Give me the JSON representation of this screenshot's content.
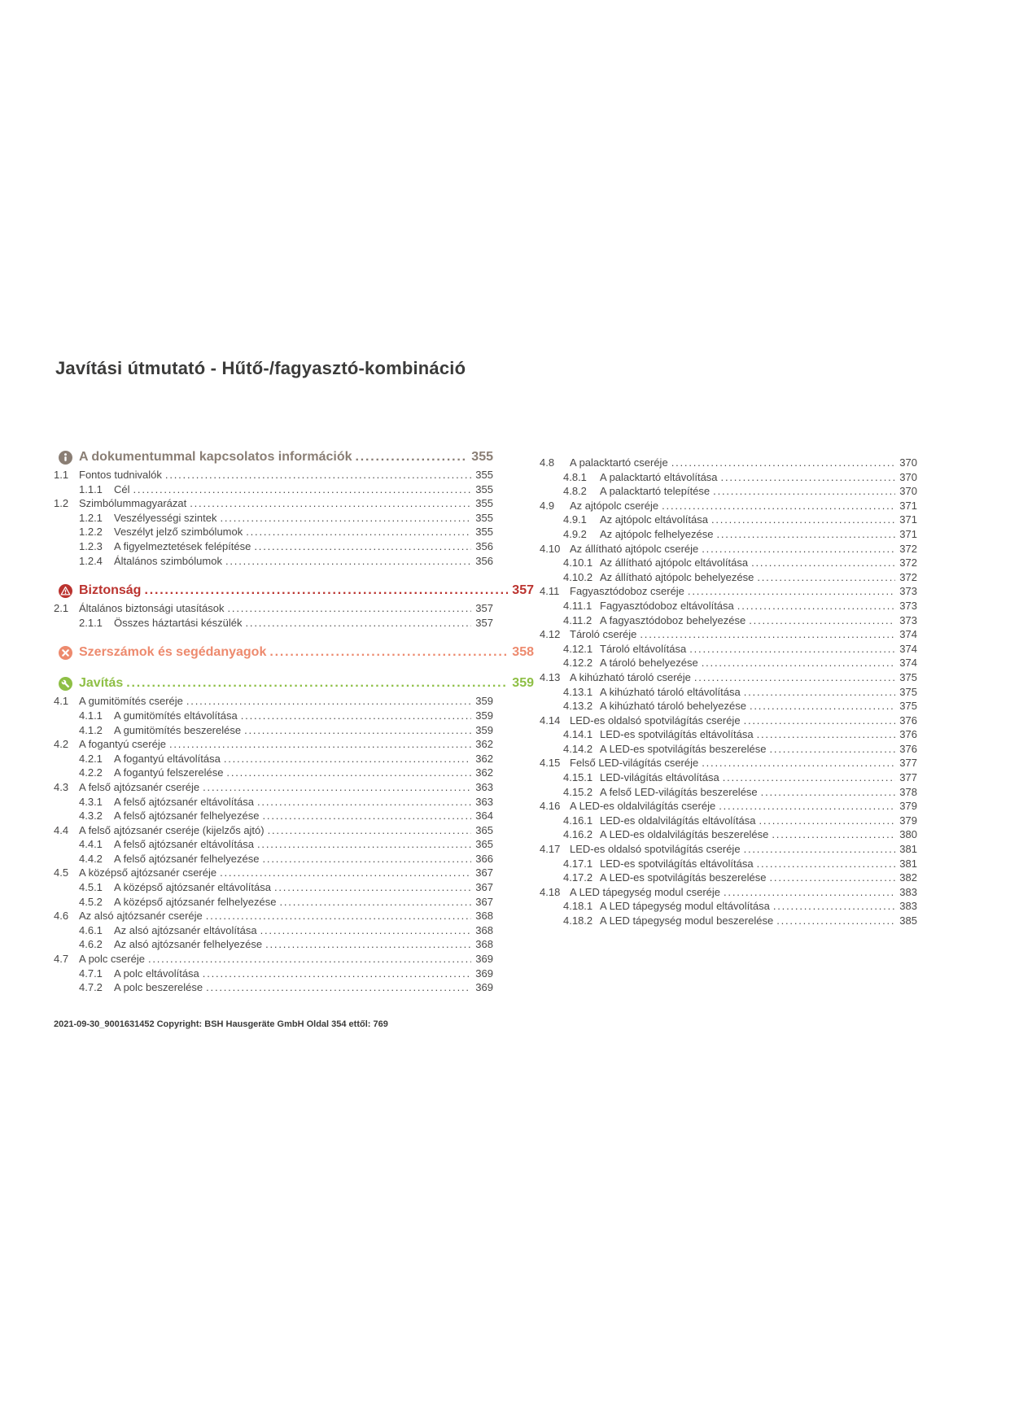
{
  "page": {
    "title": "Javítási útmutató - Hűtő-/fagyasztó-kombináció",
    "footer": "2021-09-30_9001631452 Copyright: BSH Hausgeräte GmbH Oldal 354 ettől: 769"
  },
  "colors": {
    "info": "#8a7e74",
    "safety": "#bb332f",
    "tools": "#ed8a6e",
    "repair": "#8ebf45",
    "body_text": "#474645",
    "title_text": "#3b3b3a"
  },
  "toc": {
    "left": [
      {
        "type": "chapter",
        "icon": "info-icon",
        "color": "info",
        "label": "A dokumentummal kapcsolatos információk",
        "page": "355",
        "wide": false
      },
      {
        "type": "entry",
        "num": "1.1",
        "label": "Fontos tudnivalók",
        "page": "355"
      },
      {
        "type": "subentry",
        "num": "1.1.1",
        "label": "Cél",
        "page": "355"
      },
      {
        "type": "entry",
        "num": "1.2",
        "label": "Szimbólummagyarázat",
        "page": "355"
      },
      {
        "type": "subentry",
        "num": "1.2.1",
        "label": "Veszélyességi szintek",
        "page": "355"
      },
      {
        "type": "subentry",
        "num": "1.2.2",
        "label": "Veszélyt jelző szimbólumok",
        "page": "355"
      },
      {
        "type": "subentry",
        "num": "1.2.3",
        "label": "A figyelmeztetések felépítése",
        "page": "356"
      },
      {
        "type": "subentry",
        "num": "1.2.4",
        "label": "Általános szimbólumok",
        "page": "356"
      },
      {
        "type": "chapter",
        "icon": "warning-icon",
        "color": "safety",
        "label": "Biztonság",
        "page": "357",
        "wide": true
      },
      {
        "type": "entry",
        "num": "2.1",
        "label": "Általános biztonsági utasítások",
        "page": "357"
      },
      {
        "type": "subentry",
        "num": "2.1.1",
        "label": "Összes háztartási készülék",
        "page": "357"
      },
      {
        "type": "chapter",
        "icon": "tools-icon",
        "color": "tools",
        "label": "Szerszámok és segédanyagok",
        "page": "358",
        "wide": true
      },
      {
        "type": "chapter",
        "icon": "wrench-icon",
        "color": "repair",
        "label": "Javítás",
        "page": "359",
        "wide": true
      },
      {
        "type": "entry",
        "num": "4.1",
        "label": "A gumitömítés cseréje",
        "page": "359"
      },
      {
        "type": "subentry",
        "num": "4.1.1",
        "label": "A gumitömítés eltávolítása",
        "page": "359"
      },
      {
        "type": "subentry",
        "num": "4.1.2",
        "label": "A gumitömítés beszerelése",
        "page": "359"
      },
      {
        "type": "entry",
        "num": "4.2",
        "label": "A fogantyú cseréje",
        "page": "362"
      },
      {
        "type": "subentry",
        "num": "4.2.1",
        "label": "A fogantyú eltávolítása",
        "page": "362"
      },
      {
        "type": "subentry",
        "num": "4.2.2",
        "label": "A fogantyú felszerelése",
        "page": "362"
      },
      {
        "type": "entry",
        "num": "4.3",
        "label": "A felső ajtózsanér cseréje",
        "page": "363"
      },
      {
        "type": "subentry",
        "num": "4.3.1",
        "label": "A felső ajtózsanér eltávolítása",
        "page": "363"
      },
      {
        "type": "subentry",
        "num": "4.3.2",
        "label": "A felső ajtózsanér felhelyezése",
        "page": "364"
      },
      {
        "type": "entry",
        "num": "4.4",
        "label": "A felső ajtózsanér cseréje (kijelzős ajtó)",
        "page": "365"
      },
      {
        "type": "subentry",
        "num": "4.4.1",
        "label": "A felső ajtózsanér eltávolítása",
        "page": "365"
      },
      {
        "type": "subentry",
        "num": "4.4.2",
        "label": "A felső ajtózsanér felhelyezése",
        "page": "366"
      },
      {
        "type": "entry",
        "num": "4.5",
        "label": "A középső ajtózsanér cseréje",
        "page": "367"
      },
      {
        "type": "subentry",
        "num": "4.5.1",
        "label": "A középső ajtózsanér eltávolítása",
        "page": "367"
      },
      {
        "type": "subentry",
        "num": "4.5.2",
        "label": "A középső ajtózsanér felhelyezése",
        "page": "367"
      },
      {
        "type": "entry",
        "num": "4.6",
        "label": "Az alsó ajtózsanér cseréje",
        "page": "368"
      },
      {
        "type": "subentry",
        "num": "4.6.1",
        "label": "Az alsó ajtózsanér eltávolítása",
        "page": "368"
      },
      {
        "type": "subentry",
        "num": "4.6.2",
        "label": "Az alsó ajtózsanér felhelyezése",
        "page": "368"
      },
      {
        "type": "entry",
        "num": "4.7",
        "label": "A polc cseréje",
        "page": "369"
      },
      {
        "type": "subentry",
        "num": "4.7.1",
        "label": "A polc eltávolítása",
        "page": "369"
      },
      {
        "type": "subentry",
        "num": "4.7.2",
        "label": "A polc beszerelése",
        "page": "369"
      }
    ],
    "right": [
      {
        "type": "entry",
        "num": "4.8",
        "label": "A palacktartó cseréje",
        "page": "370"
      },
      {
        "type": "subentry",
        "num": "4.8.1",
        "label": "A palacktartó eltávolítása",
        "page": "370"
      },
      {
        "type": "subentry",
        "num": "4.8.2",
        "label": "A palacktartó telepítése",
        "page": "370"
      },
      {
        "type": "entry",
        "num": "4.9",
        "label": "Az ajtópolc cseréje",
        "page": "371"
      },
      {
        "type": "subentry",
        "num": "4.9.1",
        "label": "Az ajtópolc eltávolítása",
        "page": "371"
      },
      {
        "type": "subentry",
        "num": "4.9.2",
        "label": "Az ajtópolc felhelyezése",
        "page": "371"
      },
      {
        "type": "entry",
        "num": "4.10",
        "label": "Az állítható ajtópolc cseréje",
        "page": "372"
      },
      {
        "type": "subentry",
        "num": "4.10.1",
        "label": "Az állítható ajtópolc eltávolítása",
        "page": "372"
      },
      {
        "type": "subentry",
        "num": "4.10.2",
        "label": "Az állítható ajtópolc behelyezése",
        "page": "372"
      },
      {
        "type": "entry",
        "num": "4.11",
        "label": "Fagyasztódoboz cseréje",
        "page": "373"
      },
      {
        "type": "subentry",
        "num": "4.11.1",
        "label": "Fagyasztódoboz eltávolítása",
        "page": "373"
      },
      {
        "type": "subentry",
        "num": "4.11.2",
        "label": "A fagyasztódoboz behelyezése",
        "page": "373"
      },
      {
        "type": "entry",
        "num": "4.12",
        "label": "Tároló cseréje",
        "page": "374"
      },
      {
        "type": "subentry",
        "num": "4.12.1",
        "label": "Tároló eltávolítása",
        "page": "374"
      },
      {
        "type": "subentry",
        "num": "4.12.2",
        "label": "A tároló behelyezése",
        "page": "374"
      },
      {
        "type": "entry",
        "num": "4.13",
        "label": "A kihúzható tároló cseréje",
        "page": "375"
      },
      {
        "type": "subentry",
        "num": "4.13.1",
        "label": "A kihúzható tároló eltávolítása",
        "page": "375"
      },
      {
        "type": "subentry",
        "num": "4.13.2",
        "label": "A kihúzható tároló behelyezése",
        "page": "375"
      },
      {
        "type": "entry",
        "num": "4.14",
        "label": "LED-es oldalsó spotvilágítás cseréje",
        "page": "376"
      },
      {
        "type": "subentry",
        "num": "4.14.1",
        "label": "LED-es spotvilágítás eltávolítása",
        "page": "376"
      },
      {
        "type": "subentry",
        "num": "4.14.2",
        "label": "A LED-es spotvilágítás beszerelése",
        "page": "376"
      },
      {
        "type": "entry",
        "num": "4.15",
        "label": "Felső LED-világítás cseréje",
        "page": "377"
      },
      {
        "type": "subentry",
        "num": "4.15.1",
        "label": "LED-világítás eltávolítása",
        "page": "377"
      },
      {
        "type": "subentry",
        "num": "4.15.2",
        "label": "A felső LED-világítás beszerelése",
        "page": "378"
      },
      {
        "type": "entry",
        "num": "4.16",
        "label": "A LED-es oldalvilágítás cseréje",
        "page": "379"
      },
      {
        "type": "subentry",
        "num": "4.16.1",
        "label": "LED-es oldalvilágítás eltávolítása",
        "page": "379"
      },
      {
        "type": "subentry",
        "num": "4.16.2",
        "label": "A LED-es oldalvilágítás beszerelése",
        "page": "380"
      },
      {
        "type": "entry",
        "num": "4.17",
        "label": "LED-es oldalsó spotvilágítás cseréje",
        "page": "381"
      },
      {
        "type": "subentry",
        "num": "4.17.1",
        "label": "LED-es spotvilágítás eltávolítása",
        "page": "381"
      },
      {
        "type": "subentry",
        "num": "4.17.2",
        "label": "A LED-es spotvilágítás beszerelése",
        "page": "382"
      },
      {
        "type": "entry",
        "num": "4.18",
        "label": "A LED tápegység modul cseréje",
        "page": "383"
      },
      {
        "type": "subentry",
        "num": "4.18.1",
        "label": "A LED tápegység modul eltávolítása",
        "page": "383"
      },
      {
        "type": "subentry",
        "num": "4.18.2",
        "label": "A LED tápegység modul beszerelése",
        "page": "385"
      }
    ]
  }
}
